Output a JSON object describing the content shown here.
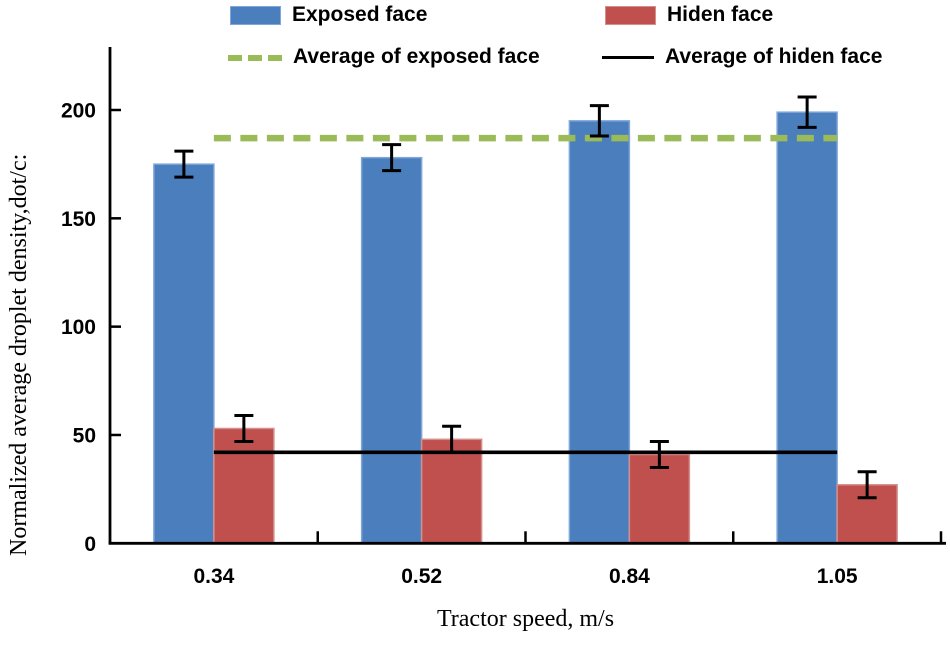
{
  "chart_data": {
    "type": "bar",
    "title": "",
    "categories": [
      "0.34",
      "0.52",
      "0.84",
      "1.05"
    ],
    "series": [
      {
        "name": "Exposed face",
        "values": [
          175,
          178,
          195,
          199
        ],
        "errors": [
          6,
          6,
          7,
          7
        ],
        "color": "#4a7ebd",
        "border": "#7fa6d9"
      },
      {
        "name": "Hiden face",
        "values": [
          53,
          48,
          41,
          27
        ],
        "errors": [
          6,
          6,
          6,
          6
        ],
        "color": "#c0504d",
        "border": "#d38f8d"
      }
    ],
    "average_lines": [
      {
        "name": "Average of exposed face",
        "value": 187,
        "color": "#9bbb59",
        "style": "dashed"
      },
      {
        "name": "Average of hiden face",
        "value": 42,
        "color": "#000000",
        "style": "solid"
      }
    ],
    "xlabel": "Tractor speed, m/s",
    "ylabel": "Normalized average droplet density,dot/c:",
    "ylim": [
      0,
      225
    ],
    "yticks": [
      0,
      50,
      100,
      150,
      200
    ],
    "grid": false,
    "legend_position": "top",
    "error_bar_color": "#000000",
    "axis_color": "#000000",
    "tick_label_color": "#000000"
  }
}
